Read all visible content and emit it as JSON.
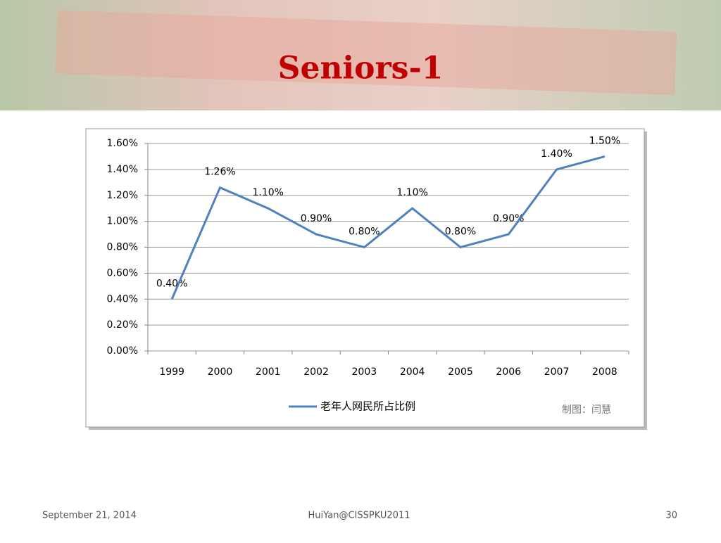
{
  "slide": {
    "title": "Seniors-1",
    "footer": {
      "date": "September 21, 2014",
      "author": "HuiYan@CISSPKU2011",
      "page": "30"
    }
  },
  "chart_data": {
    "type": "line",
    "categories": [
      "1999",
      "2000",
      "2001",
      "2002",
      "2003",
      "2004",
      "2005",
      "2006",
      "2007",
      "2008"
    ],
    "series": [
      {
        "name": "老年人网民所占比例",
        "color": "#4f81bd",
        "values": [
          0.4,
          1.26,
          1.1,
          0.9,
          0.8,
          1.1,
          0.8,
          0.9,
          1.4,
          1.5
        ],
        "value_labels": [
          "0.40%",
          "1.26%",
          "1.10%",
          "0.90%",
          "0.80%",
          "1.10%",
          "0.80%",
          "0.90%",
          "1.40%",
          "1.50%"
        ]
      }
    ],
    "ylim": [
      0,
      1.6
    ],
    "yticks": [
      {
        "value": 0,
        "label": "0.00%"
      },
      {
        "value": 0.2,
        "label": "0.20%"
      },
      {
        "value": 0.4,
        "label": "0.40%"
      },
      {
        "value": 0.6,
        "label": "0.60%"
      },
      {
        "value": 0.8,
        "label": "0.80%"
      },
      {
        "value": 1.0,
        "label": "1.00%"
      },
      {
        "value": 1.2,
        "label": "1.20%"
      },
      {
        "value": 1.4,
        "label": "1.40%"
      },
      {
        "value": 1.6,
        "label": "1.60%"
      }
    ],
    "grid": true,
    "legend": "bottom",
    "annotation": "制图：闫慧"
  }
}
